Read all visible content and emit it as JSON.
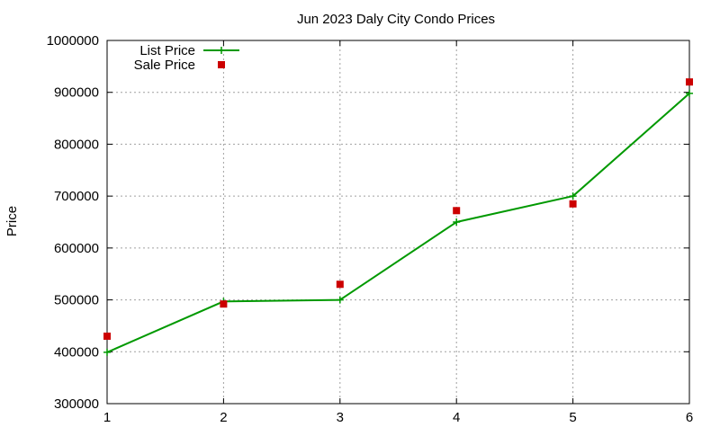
{
  "chart_data": {
    "type": "line",
    "title": "Jun 2023 Daly City Condo Prices",
    "xlabel": "",
    "ylabel": "Price",
    "x": [
      1,
      2,
      3,
      4,
      5,
      6
    ],
    "xlim": [
      1,
      6
    ],
    "ylim": [
      300000,
      1000000
    ],
    "xticks": [
      "1",
      "2",
      "3",
      "4",
      "5",
      "6"
    ],
    "yticks": [
      "300000",
      "400000",
      "500000",
      "600000",
      "700000",
      "800000",
      "900000",
      "1000000"
    ],
    "grid": true,
    "legend_position": "top-left",
    "series": [
      {
        "name": "List Price",
        "style": "line-with-plus-markers",
        "color": "#009900",
        "values": [
          399000,
          497000,
          500000,
          650000,
          700000,
          898000
        ]
      },
      {
        "name": "Sale Price",
        "style": "square-markers",
        "color": "#cc0000",
        "values": [
          430000,
          492000,
          530000,
          672000,
          685000,
          920000
        ]
      }
    ]
  }
}
